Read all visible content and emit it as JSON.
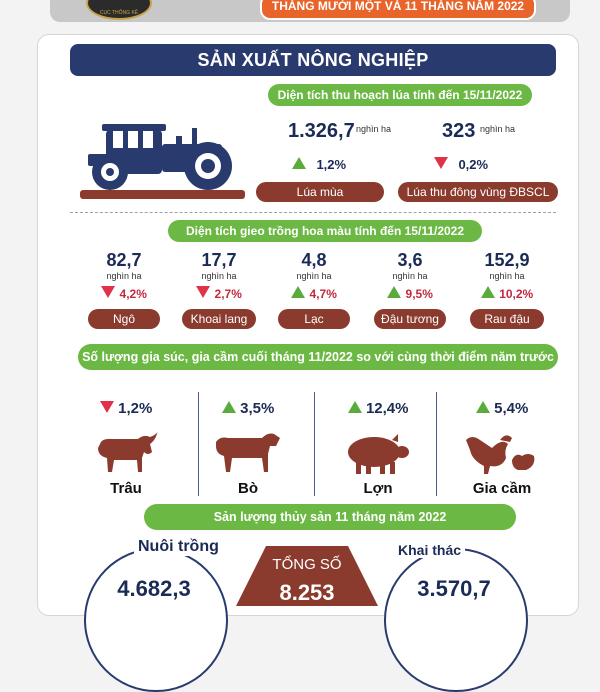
{
  "header": {
    "banner_text": "THÁNG MƯỜI MỘT VÀ 11 THÁNG NĂM 2022",
    "logo_text": "CỤC THỐNG KÊ"
  },
  "section": {
    "title": "SẢN XUẤT NÔNG NGHIỆP"
  },
  "rice": {
    "heading": "Diện tích thu hoạch lúa tính đến 15/11/2022",
    "items": [
      {
        "value": "1.326,7",
        "unit": "nghìn ha",
        "change": "1,2%",
        "direction": "up",
        "label": "Lúa mùa"
      },
      {
        "value": "323",
        "unit": "nghìn ha",
        "change": "0,2%",
        "direction": "down",
        "label": "Lúa thu đông vùng ĐBSCL"
      }
    ]
  },
  "crops": {
    "heading": "Diện tích gieo trồng hoa màu tính đến 15/11/2022",
    "items": [
      {
        "value": "82,7",
        "unit": "nghìn ha",
        "change": "4,2%",
        "direction": "down",
        "label": "Ngô"
      },
      {
        "value": "17,7",
        "unit": "nghìn ha",
        "change": "2,7%",
        "direction": "down",
        "label": "Khoai lang"
      },
      {
        "value": "4,8",
        "unit": "nghìn ha",
        "change": "4,7%",
        "direction": "up",
        "label": "Lạc"
      },
      {
        "value": "3,6",
        "unit": "nghìn ha",
        "change": "9,5%",
        "direction": "up",
        "label": "Đậu tương"
      },
      {
        "value": "152,9",
        "unit": "nghìn ha",
        "change": "10,2%",
        "direction": "up",
        "label": "Rau đậu"
      }
    ]
  },
  "livestock": {
    "heading": "Số lượng gia súc, gia cầm cuối tháng 11/2022 so với cùng thời điểm năm trước",
    "items": [
      {
        "change": "1,2%",
        "direction": "down",
        "label": "Trâu",
        "icon": "buffalo-icon"
      },
      {
        "change": "3,5%",
        "direction": "up",
        "label": "Bò",
        "icon": "cow-icon"
      },
      {
        "change": "12,4%",
        "direction": "up",
        "label": "Lợn",
        "icon": "pig-icon"
      },
      {
        "change": "5,4%",
        "direction": "up",
        "label": "Gia cầm",
        "icon": "poultry-icon"
      }
    ]
  },
  "fishery": {
    "heading": "Sản lượng thủy sản 11 tháng năm 2022",
    "aquaculture_label": "Nuôi trồng",
    "aquaculture_value": "4.682,3",
    "total_label": "TỔNG SỐ",
    "total_value": "8.253",
    "capture_label": "Khai thác",
    "capture_value": "3.570,7"
  },
  "colors": {
    "navy": "#293a6e",
    "green": "#6cb845",
    "brown": "#8b3a2e",
    "up": "#5aab3c",
    "down": "#e0334a"
  }
}
